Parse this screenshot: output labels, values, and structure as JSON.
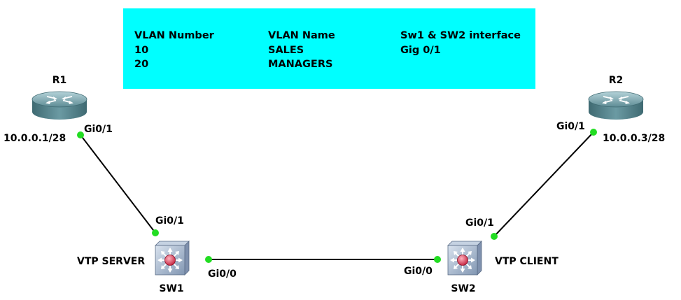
{
  "vlan_table": {
    "background": "#00ffff",
    "headers": [
      "VLAN Number",
      "VLAN Name",
      "Sw1 & SW2 interface"
    ],
    "rows": [
      [
        "10",
        "SALES",
        "Gig 0/1"
      ],
      [
        "20",
        "MANAGERS",
        ""
      ]
    ]
  },
  "devices": {
    "r1": {
      "name": "R1",
      "ip": "10.0.0.1/28",
      "port": "Gi0/1"
    },
    "r2": {
      "name": "R2",
      "ip": "10.0.0.3/28",
      "port": "Gi0/1"
    },
    "sw1": {
      "name": "SW1",
      "role": "VTP SERVER",
      "port_up": "Gi0/1",
      "port_trunk": "Gi0/0"
    },
    "sw2": {
      "name": "SW2",
      "role": "VTP CLIENT",
      "port_up": "Gi0/1",
      "port_trunk": "Gi0/0"
    }
  },
  "colors": {
    "link": "#000000",
    "port_dot": "#22dd22"
  }
}
